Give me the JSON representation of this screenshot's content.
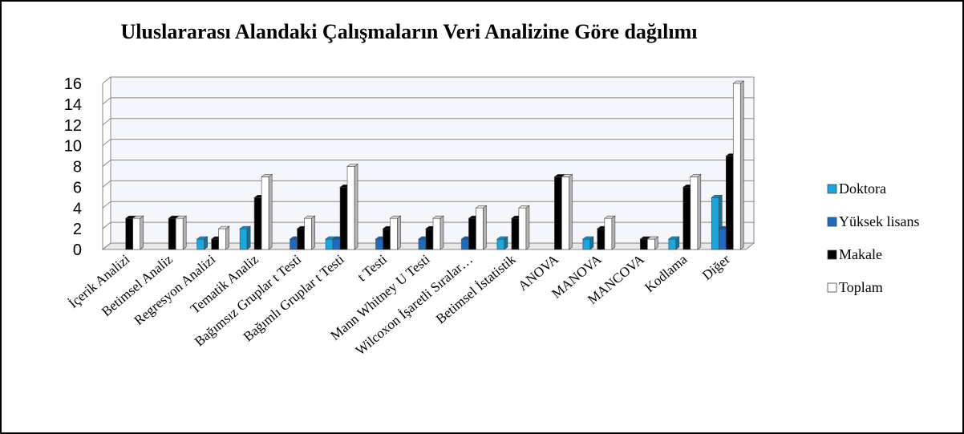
{
  "chart_data": {
    "type": "bar3d",
    "title": "Uluslararası Alandaki Çalışmaların Veri Analizine Göre dağılımı",
    "categories": [
      "İçerik Analizi",
      "Betimsel Analiz",
      "Regresyon Analizi",
      "Tematik Analiz",
      "Bağımsız Gruplar t Testi",
      "Bağımlı Gruplar t Testi",
      "t Testi",
      "Mann Whitney U Testi",
      "Wilcoxon İşaretli Sıralar…",
      "Betimsel İstatistik",
      "ANOVA",
      "MANOVA",
      "MANCOVA",
      "Kodlama",
      "Diğer"
    ],
    "series": [
      {
        "name": "Doktora",
        "color": "#1aa7e0",
        "values": [
          0,
          0,
          1,
          2,
          0,
          1,
          0,
          0,
          0,
          1,
          0,
          1,
          0,
          1,
          5
        ]
      },
      {
        "name": "Yüksek lisans",
        "color": "#1f6bbf",
        "values": [
          0,
          0,
          0,
          0,
          1,
          1,
          1,
          1,
          1,
          0,
          0,
          0,
          0,
          0,
          2
        ]
      },
      {
        "name": "Makale",
        "color": "#000000",
        "values": [
          3,
          3,
          1,
          5,
          2,
          6,
          2,
          2,
          3,
          3,
          7,
          2,
          1,
          6,
          9
        ]
      },
      {
        "name": "Toplam",
        "color": "#ffffff",
        "values": [
          3,
          3,
          2,
          7,
          3,
          8,
          3,
          3,
          4,
          4,
          7,
          3,
          1,
          7,
          16
        ]
      }
    ],
    "ylim": [
      0,
      16
    ],
    "yticks": [
      0,
      2,
      4,
      6,
      8,
      10,
      12,
      14,
      16
    ],
    "grid": true
  }
}
